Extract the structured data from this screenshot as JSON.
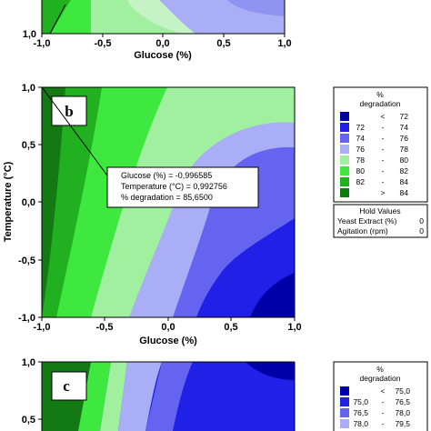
{
  "colors": {
    "lt72": "#0000a8",
    "c72_74": "#2020e6",
    "c74_76": "#6464f0",
    "c76_78": "#a9aef6",
    "c78_80": "#a0f0a0",
    "c80_82": "#3fe83f",
    "c82_84": "#20b020",
    "gt84": "#137a13"
  },
  "panel_a": {
    "xlabel": "Glucose (%)",
    "y_tick": "1,0",
    "x_ticks": [
      "-1,0",
      "-0,5",
      "0,0",
      "0,5",
      "1,0"
    ]
  },
  "panel_b": {
    "letter": "b",
    "xlabel": "Glucose (%)",
    "ylabel": "Temperature (°C)",
    "x_ticks": [
      "-1,0",
      "-0,5",
      "0,0",
      "0,5",
      "1,0"
    ],
    "y_ticks": [
      "1,0",
      "0,5",
      "0,0",
      "-0,5",
      "-1,0"
    ],
    "tooltip": {
      "line1": "Glucose (%) = -0,996585",
      "line2": "Temperature (°C) = 0,992756",
      "line3": "% degradation = 85,6500"
    },
    "legend": {
      "title1": "%",
      "title2": "degradation",
      "rows": [
        {
          "a": "",
          "sep": "<",
          "b": "72"
        },
        {
          "a": "72",
          "sep": "-",
          "b": "74"
        },
        {
          "a": "74",
          "sep": "-",
          "b": "76"
        },
        {
          "a": "76",
          "sep": "-",
          "b": "78"
        },
        {
          "a": "78",
          "sep": "-",
          "b": "80"
        },
        {
          "a": "80",
          "sep": "-",
          "b": "82"
        },
        {
          "a": "82",
          "sep": "-",
          "b": "84"
        },
        {
          "a": "",
          "sep": ">",
          "b": "84"
        }
      ]
    },
    "hold": {
      "title": "Hold Values",
      "row1_label": "Yeast Extract (%)",
      "row1_value": "0",
      "row2_label": "Agitation (rpm)",
      "row2_value": "0"
    }
  },
  "panel_c": {
    "letter": "c",
    "y_ticks": [
      "1,0",
      "0,5"
    ],
    "legend": {
      "title1": "%",
      "title2": "degradation",
      "rows": [
        {
          "a": "",
          "sep": "<",
          "b": "75,0"
        },
        {
          "a": "75,0",
          "sep": "-",
          "b": "76,5"
        },
        {
          "a": "76,5",
          "sep": "-",
          "b": "78,0"
        },
        {
          "a": "78,0",
          "sep": "-",
          "b": "79,5"
        }
      ]
    }
  },
  "chart_data": [
    {
      "type": "contour",
      "panel": "a",
      "xlabel": "Glucose (%)",
      "xlim": [
        -1,
        1
      ],
      "levels": [
        72,
        74,
        76,
        78,
        80,
        82,
        84
      ]
    },
    {
      "type": "contour",
      "panel": "b",
      "xlabel": "Glucose (%)",
      "ylabel": "Temperature (°C)",
      "xlim": [
        -1,
        1
      ],
      "ylim": [
        -1,
        1
      ],
      "levels": [
        72,
        74,
        76,
        78,
        80,
        82,
        84
      ],
      "annotated_point": {
        "x": -0.996585,
        "y": 0.992756,
        "value": 85.65
      },
      "hold_values": {
        "Yeast Extract (%)": 0,
        "Agitation (rpm)": 0
      }
    },
    {
      "type": "contour",
      "panel": "c",
      "ylim": [
        0.5,
        1
      ],
      "levels": [
        75.0,
        76.5,
        78.0,
        79.5
      ]
    }
  ]
}
